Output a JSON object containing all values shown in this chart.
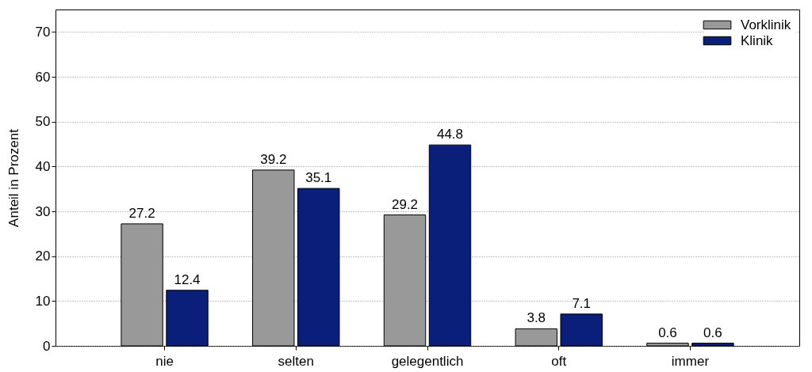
{
  "chart_data": {
    "type": "bar",
    "ylabel": "Anteil in Prozent",
    "categories": [
      "nie",
      "selten",
      "gelegentlich",
      "oft",
      "immer"
    ],
    "series": [
      {
        "name": "Vorklinik",
        "color": "#999999",
        "values": [
          27.2,
          39.2,
          29.2,
          3.8,
          0.6
        ]
      },
      {
        "name": "Klinik",
        "color": "#0a1f7a",
        "values": [
          12.4,
          35.1,
          44.8,
          7.1,
          0.6
        ]
      }
    ],
    "ylim": [
      0,
      75
    ],
    "yticks": [
      0,
      10,
      20,
      30,
      40,
      50,
      60,
      70
    ],
    "grid": "y",
    "legend": "top right",
    "data_labels": true
  }
}
